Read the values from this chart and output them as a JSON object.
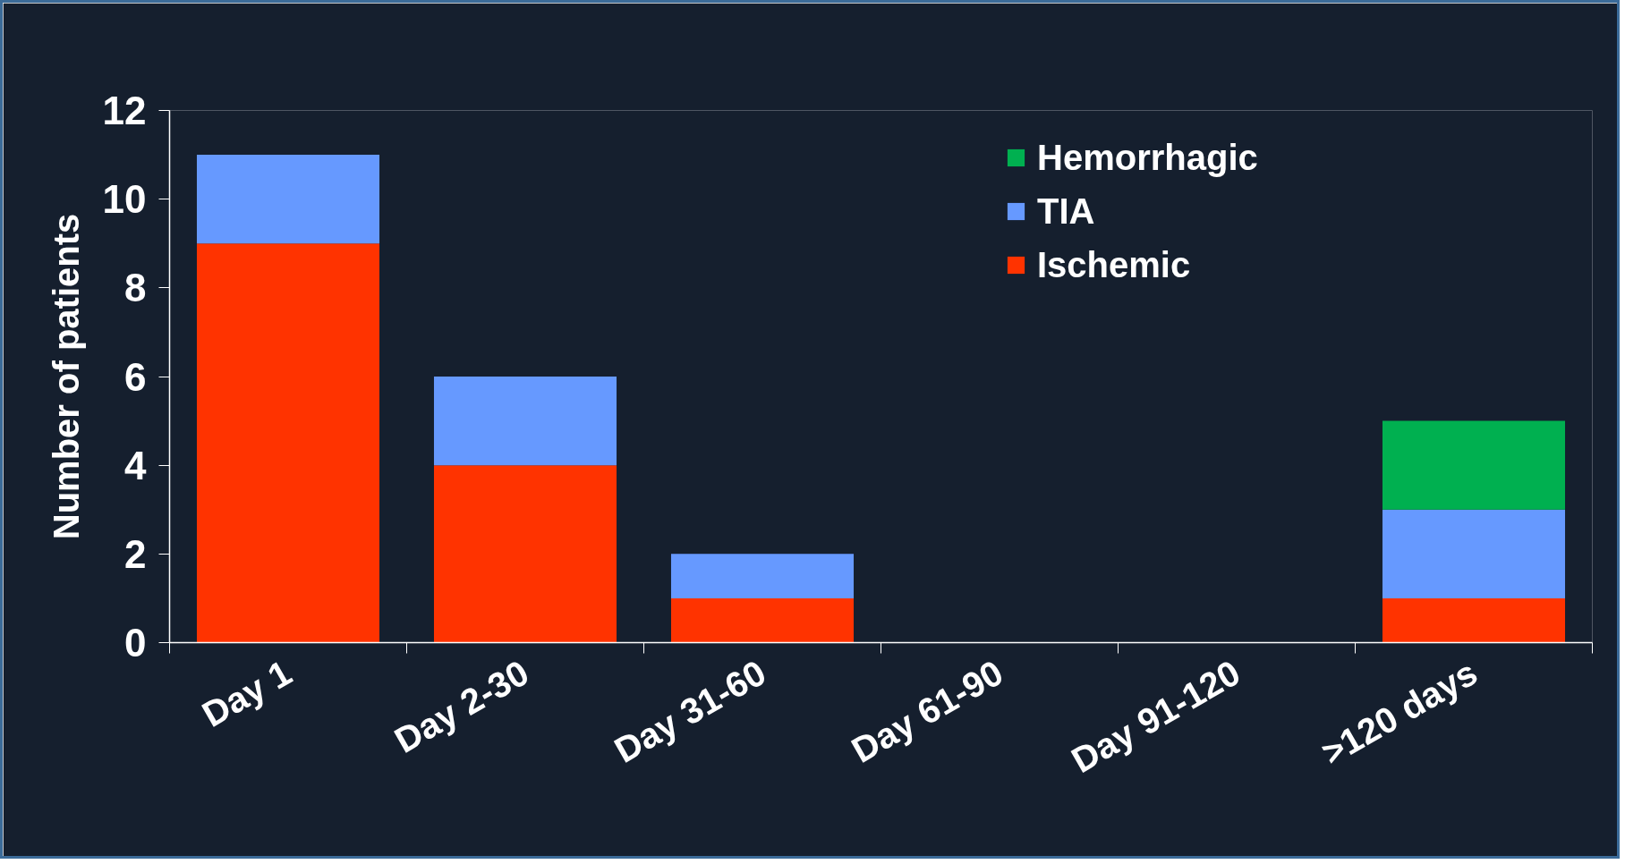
{
  "chart_data": {
    "type": "bar",
    "stacked": true,
    "ylabel": "Number of patients",
    "categories": [
      "Day 1",
      "Day 2-30",
      "Day 31-60",
      "Day 61-90",
      "Day 91-120",
      ">120 days"
    ],
    "series": [
      {
        "name": "Ischemic",
        "color": "#ff3300",
        "values": [
          9,
          4,
          1,
          0,
          0,
          1
        ]
      },
      {
        "name": "TIA",
        "color": "#6699ff",
        "values": [
          2,
          2,
          1,
          0,
          0,
          2
        ]
      },
      {
        "name": "Hemorrhagic",
        "color": "#00b050",
        "values": [
          0,
          0,
          0,
          0,
          0,
          2
        ]
      }
    ],
    "ylim": [
      0,
      12
    ],
    "yticks": [
      0,
      2,
      4,
      6,
      8,
      10,
      12
    ],
    "grid": false,
    "legend": "top right"
  }
}
